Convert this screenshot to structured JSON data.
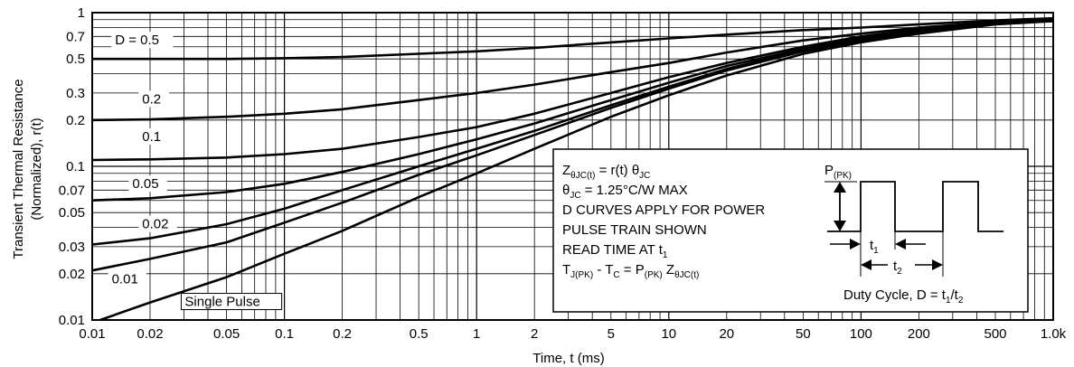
{
  "chart_data": {
    "type": "line",
    "x_scale": "log",
    "y_scale": "log",
    "grid": true,
    "xlabel": "Time, t (ms)",
    "ylabel_line1": "Transient Thermal Resistance",
    "ylabel_line2": "(Normalized), r(t)",
    "xlim": [
      0.01,
      1000
    ],
    "ylim": [
      0.01,
      1
    ],
    "x_ticks": [
      {
        "v": 0.01,
        "label": "0.01"
      },
      {
        "v": 0.02,
        "label": "0.02"
      },
      {
        "v": 0.05,
        "label": "0.05"
      },
      {
        "v": 0.1,
        "label": "0.1"
      },
      {
        "v": 0.2,
        "label": "0.2"
      },
      {
        "v": 0.5,
        "label": "0.5"
      },
      {
        "v": 1,
        "label": "1"
      },
      {
        "v": 2,
        "label": "2"
      },
      {
        "v": 5,
        "label": "5"
      },
      {
        "v": 10,
        "label": "10"
      },
      {
        "v": 20,
        "label": "20"
      },
      {
        "v": 50,
        "label": "50"
      },
      {
        "v": 100,
        "label": "100"
      },
      {
        "v": 200,
        "label": "200"
      },
      {
        "v": 500,
        "label": "500"
      },
      {
        "v": 1000,
        "label": "1.0k"
      }
    ],
    "y_ticks": [
      {
        "v": 1,
        "label": "1"
      },
      {
        "v": 0.7,
        "label": "0.7"
      },
      {
        "v": 0.5,
        "label": "0.5"
      },
      {
        "v": 0.3,
        "label": "0.3"
      },
      {
        "v": 0.2,
        "label": "0.2"
      },
      {
        "v": 0.1,
        "label": "0.1"
      },
      {
        "v": 0.07,
        "label": "0.07"
      },
      {
        "v": 0.05,
        "label": "0.05"
      },
      {
        "v": 0.03,
        "label": "0.03"
      },
      {
        "v": 0.02,
        "label": "0.02"
      },
      {
        "v": 0.01,
        "label": "0.01"
      }
    ],
    "series": [
      {
        "name": "D = 0.5",
        "label_x": 0.013,
        "label_y": 0.63,
        "points": [
          [
            0.01,
            0.5
          ],
          [
            0.05,
            0.5
          ],
          [
            0.1,
            0.505
          ],
          [
            0.2,
            0.515
          ],
          [
            0.5,
            0.54
          ],
          [
            1,
            0.56
          ],
          [
            2,
            0.59
          ],
          [
            5,
            0.64
          ],
          [
            10,
            0.68
          ],
          [
            20,
            0.72
          ],
          [
            50,
            0.77
          ],
          [
            100,
            0.8
          ],
          [
            200,
            0.84
          ],
          [
            500,
            0.89
          ],
          [
            1000,
            0.92
          ]
        ]
      },
      {
        "name": "0.2",
        "label_x": 0.018,
        "label_y": 0.26,
        "points": [
          [
            0.01,
            0.2
          ],
          [
            0.02,
            0.202
          ],
          [
            0.05,
            0.21
          ],
          [
            0.1,
            0.22
          ],
          [
            0.2,
            0.235
          ],
          [
            0.5,
            0.27
          ],
          [
            1,
            0.3
          ],
          [
            2,
            0.34
          ],
          [
            5,
            0.41
          ],
          [
            10,
            0.47
          ],
          [
            20,
            0.55
          ],
          [
            50,
            0.66
          ],
          [
            100,
            0.73
          ],
          [
            200,
            0.8
          ],
          [
            500,
            0.87
          ],
          [
            1000,
            0.905
          ]
        ]
      },
      {
        "name": "0.1",
        "label_x": 0.018,
        "label_y": 0.148,
        "points": [
          [
            0.01,
            0.11
          ],
          [
            0.02,
            0.111
          ],
          [
            0.05,
            0.114
          ],
          [
            0.1,
            0.12
          ],
          [
            0.2,
            0.13
          ],
          [
            0.5,
            0.155
          ],
          [
            1,
            0.18
          ],
          [
            2,
            0.22
          ],
          [
            5,
            0.3
          ],
          [
            10,
            0.38
          ],
          [
            20,
            0.47
          ],
          [
            50,
            0.6
          ],
          [
            100,
            0.7
          ],
          [
            200,
            0.78
          ],
          [
            500,
            0.86
          ],
          [
            1000,
            0.9
          ]
        ]
      },
      {
        "name": "0.05",
        "label_x": 0.016,
        "label_y": 0.073,
        "points": [
          [
            0.01,
            0.06
          ],
          [
            0.02,
            0.062
          ],
          [
            0.05,
            0.068
          ],
          [
            0.1,
            0.077
          ],
          [
            0.2,
            0.092
          ],
          [
            0.5,
            0.12
          ],
          [
            1,
            0.15
          ],
          [
            2,
            0.19
          ],
          [
            5,
            0.27
          ],
          [
            10,
            0.35
          ],
          [
            20,
            0.45
          ],
          [
            50,
            0.58
          ],
          [
            100,
            0.68
          ],
          [
            200,
            0.77
          ],
          [
            500,
            0.855
          ],
          [
            1000,
            0.895
          ]
        ]
      },
      {
        "name": "0.02",
        "label_x": 0.018,
        "label_y": 0.04,
        "points": [
          [
            0.01,
            0.031
          ],
          [
            0.02,
            0.034
          ],
          [
            0.05,
            0.042
          ],
          [
            0.1,
            0.053
          ],
          [
            0.2,
            0.07
          ],
          [
            0.5,
            0.1
          ],
          [
            1,
            0.13
          ],
          [
            2,
            0.17
          ],
          [
            5,
            0.25
          ],
          [
            10,
            0.33
          ],
          [
            20,
            0.43
          ],
          [
            50,
            0.57
          ],
          [
            100,
            0.67
          ],
          [
            200,
            0.76
          ],
          [
            500,
            0.85
          ],
          [
            1000,
            0.89
          ]
        ]
      },
      {
        "name": "0.01",
        "label_x": 0.0125,
        "label_y": 0.0175,
        "points": [
          [
            0.01,
            0.021
          ],
          [
            0.02,
            0.025
          ],
          [
            0.05,
            0.032
          ],
          [
            0.1,
            0.043
          ],
          [
            0.2,
            0.058
          ],
          [
            0.5,
            0.088
          ],
          [
            1,
            0.118
          ],
          [
            2,
            0.16
          ],
          [
            5,
            0.24
          ],
          [
            10,
            0.32
          ],
          [
            20,
            0.42
          ],
          [
            50,
            0.56
          ],
          [
            100,
            0.66
          ],
          [
            200,
            0.75
          ],
          [
            500,
            0.845
          ],
          [
            1000,
            0.885
          ]
        ]
      },
      {
        "name": "Single Pulse",
        "label_x": 0.03,
        "label_y": 0.0125,
        "points": [
          [
            0.011,
            0.01
          ],
          [
            0.02,
            0.013
          ],
          [
            0.05,
            0.019
          ],
          [
            0.1,
            0.027
          ],
          [
            0.2,
            0.038
          ],
          [
            0.5,
            0.063
          ],
          [
            1,
            0.09
          ],
          [
            2,
            0.13
          ],
          [
            5,
            0.21
          ],
          [
            10,
            0.29
          ],
          [
            20,
            0.39
          ],
          [
            50,
            0.54
          ],
          [
            100,
            0.64
          ],
          [
            200,
            0.73
          ],
          [
            500,
            0.84
          ],
          [
            1000,
            0.88
          ]
        ]
      }
    ],
    "annotation_box": {
      "lines": [
        {
          "parts": [
            [
              "Z",
              ""
            ],
            [
              "θJC(t)",
              "sub"
            ],
            [
              " = r(t) θ",
              ""
            ],
            [
              "JC",
              "sub"
            ]
          ]
        },
        {
          "parts": [
            [
              "θ",
              ""
            ],
            [
              "JC",
              "sub"
            ],
            [
              " = 1.25°C/W MAX",
              ""
            ]
          ]
        },
        {
          "parts": [
            [
              "D CURVES APPLY FOR POWER",
              ""
            ]
          ]
        },
        {
          "parts": [
            [
              "PULSE TRAIN SHOWN",
              ""
            ]
          ]
        },
        {
          "parts": [
            [
              "READ TIME AT t",
              ""
            ],
            [
              "1",
              "sub"
            ]
          ]
        },
        {
          "parts": [
            [
              "T",
              ""
            ],
            [
              "J(PK)",
              "sub"
            ],
            [
              " - T",
              ""
            ],
            [
              "C",
              "sub"
            ],
            [
              " = P",
              ""
            ],
            [
              "(PK)",
              "sub"
            ],
            [
              " Z",
              ""
            ],
            [
              "θJC(t)",
              "sub"
            ]
          ]
        }
      ],
      "pulse_label": [
        [
          "P",
          ""
        ],
        [
          "(PK)",
          "sub"
        ]
      ],
      "t1_label": [
        [
          "t",
          ""
        ],
        [
          "1",
          "sub"
        ]
      ],
      "t2_label": [
        [
          "t",
          ""
        ],
        [
          "2",
          "sub"
        ]
      ],
      "duty_cycle": [
        [
          "Duty Cycle, D = t",
          ""
        ],
        [
          "1",
          "sub"
        ],
        [
          "/t",
          ""
        ],
        [
          "2",
          "sub"
        ]
      ]
    }
  }
}
